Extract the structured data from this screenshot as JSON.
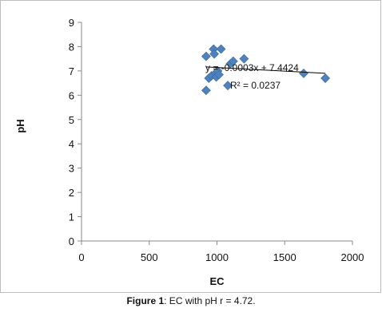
{
  "chart_data": {
    "type": "scatter",
    "xlabel": "EC",
    "ylabel": "pH",
    "xlim": [
      0,
      2000
    ],
    "ylim": [
      0,
      9
    ],
    "x_ticks": [
      0,
      500,
      1000,
      1500,
      2000
    ],
    "y_ticks": [
      0,
      1,
      2,
      3,
      4,
      5,
      6,
      7,
      8,
      9
    ],
    "grid": false,
    "marker_color": "#4F81BD",
    "trendline_color": "#000000",
    "points": [
      {
        "x": 920,
        "y": 7.6
      },
      {
        "x": 920,
        "y": 6.2
      },
      {
        "x": 940,
        "y": 6.7
      },
      {
        "x": 960,
        "y": 6.8
      },
      {
        "x": 975,
        "y": 7.9
      },
      {
        "x": 980,
        "y": 7.7
      },
      {
        "x": 990,
        "y": 6.9
      },
      {
        "x": 995,
        "y": 6.75
      },
      {
        "x": 1005,
        "y": 7.0
      },
      {
        "x": 1015,
        "y": 6.85
      },
      {
        "x": 1030,
        "y": 7.9
      },
      {
        "x": 1080,
        "y": 6.4
      },
      {
        "x": 1100,
        "y": 7.3
      },
      {
        "x": 1120,
        "y": 7.4
      },
      {
        "x": 1200,
        "y": 7.5
      },
      {
        "x": 1640,
        "y": 6.9
      },
      {
        "x": 1800,
        "y": 6.7
      }
    ],
    "trendline": {
      "slope": -0.0003,
      "intercept": 7.4424,
      "x_range": [
        920,
        1800
      ]
    },
    "annotations": {
      "equation": "y = -0.0003x + 7.4424",
      "r_squared": "R² = 0.0237"
    }
  },
  "caption": {
    "label": "Figure 1",
    "text": ": EC with pH  r = 4.72."
  }
}
